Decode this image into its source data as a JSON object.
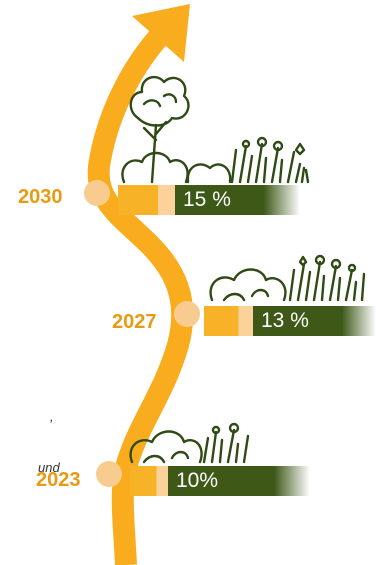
{
  "colors": {
    "accent": "#f9ad1e",
    "dot": "#f8cc8f",
    "year_text": "#e99a13",
    "bar_green": "#3d5817",
    "bar_fill_orange": "#f7b227",
    "bar_fill_light": "#fbd29a"
  },
  "caption": {
    "line1": ",",
    "line2": "und"
  },
  "milestones": [
    {
      "year": "2030",
      "percent_label": "15 %",
      "share_percent": 15
    },
    {
      "year": "2027",
      "percent_label": "13 %",
      "share_percent": 13
    },
    {
      "year": "2023",
      "percent_label": "10%",
      "share_percent": 10
    }
  ]
}
